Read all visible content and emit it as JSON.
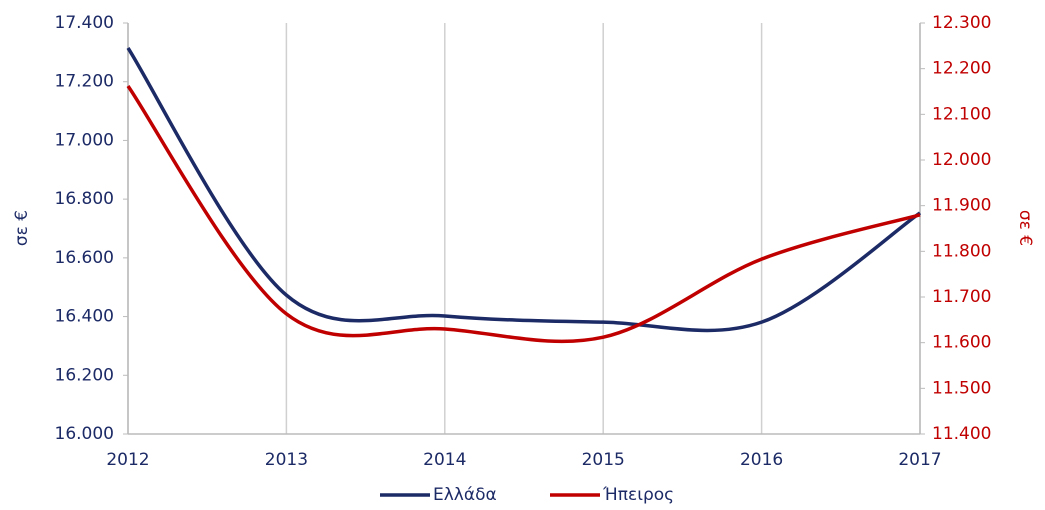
{
  "chart_data": {
    "type": "line",
    "x": [
      2012,
      2013,
      2014,
      2015,
      2016,
      2017
    ],
    "xlim": [
      2012,
      2017
    ],
    "xticks": [
      2012,
      2013,
      2014,
      2015,
      2016,
      2017
    ],
    "ylabel": "σε €",
    "y2label": "σε €",
    "ylim": [
      16000,
      17400
    ],
    "yticks": [
      {
        "value": 16000,
        "label": "16.000"
      },
      {
        "value": 16200,
        "label": "16.200"
      },
      {
        "value": 16400,
        "label": "16.400"
      },
      {
        "value": 16600,
        "label": "16.600"
      },
      {
        "value": 16800,
        "label": "16.800"
      },
      {
        "value": 17000,
        "label": "17.000"
      },
      {
        "value": 17200,
        "label": "17.200"
      },
      {
        "value": 17400,
        "label": "17.400"
      }
    ],
    "y2lim": [
      11400,
      12300
    ],
    "y2ticks": [
      {
        "value": 11400,
        "label": "11.400"
      },
      {
        "value": 11500,
        "label": "11.500"
      },
      {
        "value": 11600,
        "label": "11.600"
      },
      {
        "value": 11700,
        "label": "11.700"
      },
      {
        "value": 11800,
        "label": "11.800"
      },
      {
        "value": 11900,
        "label": "11.900"
      },
      {
        "value": 12000,
        "label": "12.000"
      },
      {
        "value": 12100,
        "label": "12.100"
      },
      {
        "value": 12200,
        "label": "12.200"
      },
      {
        "value": 12300,
        "label": "12.300"
      }
    ],
    "grid": true,
    "smooth": true,
    "legend": "bottom",
    "series": [
      {
        "name": "Ελλάδα",
        "color": "#1c2a66",
        "values": [
          17315,
          16473,
          16402,
          16381,
          16381,
          16753
        ]
      },
      {
        "name": "Ήπειρος",
        "color": "#c00000",
        "axis": "y2",
        "values": [
          12162,
          11663,
          11630,
          11612,
          11783,
          11880
        ]
      }
    ]
  }
}
